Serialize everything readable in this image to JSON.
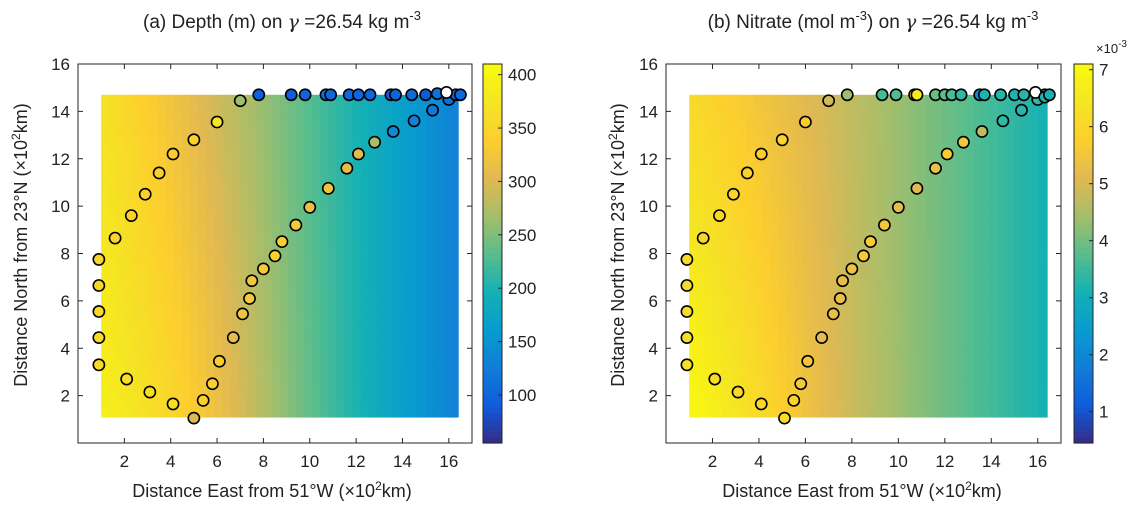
{
  "panels": [
    {
      "title": {
        "prefix": "(a) Depth (m) on ",
        "gamma": "γ",
        "eq": " =26.54 kg m",
        "sup": "-3"
      },
      "ylabel": {
        "pre": "Distance North from 23°N (",
        "times": "×",
        "ten": "10",
        "sup": "2",
        "post": "km)"
      },
      "xlabel": {
        "pre": "Distance East from 51°W (",
        "times": "×",
        "ten": "10",
        "sup": "2",
        "post": "km)"
      },
      "colorbar": {
        "ticks": [
          "100",
          "150",
          "200",
          "250",
          "300",
          "350",
          "400"
        ],
        "exponent": ""
      }
    },
    {
      "title": {
        "prefix": "(b) Nitrate (mol m",
        "sup1": "-3",
        "mid": ") on ",
        "gamma": "γ",
        "eq": " =26.54 kg m",
        "sup": "-3"
      },
      "ylabel": {
        "pre": "Distance North from 23°N (",
        "times": "×",
        "ten": "10",
        "sup": "2",
        "post": "km)"
      },
      "xlabel": {
        "pre": "Distance East from 51°W (",
        "times": "×",
        "ten": "10",
        "sup": "2",
        "post": "km)"
      },
      "colorbar": {
        "ticks": [
          "1",
          "2",
          "3",
          "4",
          "5",
          "6",
          "7"
        ],
        "exponent": {
          "times": "×",
          "ten": "10",
          "sup": "-3"
        }
      }
    }
  ],
  "chart_data": [
    {
      "type": "heatmap",
      "title": "(a) Depth (m) on γ =26.54 kg m-3",
      "xlabel": "Distance East from 51°W (×10²km)",
      "ylabel": "Distance North from 23°N (×10²km)",
      "xlim": [
        0,
        17
      ],
      "ylim": [
        0,
        16
      ],
      "xticks": [
        2,
        4,
        6,
        8,
        10,
        12,
        14,
        16
      ],
      "yticks": [
        2,
        4,
        6,
        8,
        10,
        12,
        14,
        16
      ],
      "field_extent": {
        "x": [
          1,
          16.4
        ],
        "y": [
          1.1,
          14.7
        ]
      },
      "field_model": {
        "west_value": 370,
        "east_value": 130,
        "south_boost_peak": 30,
        "southwest_peak_x": 4
      },
      "colorbar": {
        "min": 55,
        "max": 410,
        "ticks": [
          100,
          150,
          200,
          250,
          300,
          350,
          400
        ],
        "colormap": "parula"
      },
      "grid": false,
      "points": [
        {
          "x": 0.9,
          "y": 7.75,
          "v": 350
        },
        {
          "x": 0.9,
          "y": 6.65,
          "v": 352
        },
        {
          "x": 0.9,
          "y": 5.55,
          "v": 355
        },
        {
          "x": 0.9,
          "y": 4.45,
          "v": 358
        },
        {
          "x": 0.9,
          "y": 3.3,
          "v": 360
        },
        {
          "x": 2.1,
          "y": 2.7,
          "v": 362
        },
        {
          "x": 3.1,
          "y": 2.15,
          "v": 365
        },
        {
          "x": 4.1,
          "y": 1.65,
          "v": 368
        },
        {
          "x": 5.0,
          "y": 1.05,
          "v": 300
        },
        {
          "x": 5.4,
          "y": 1.8,
          "v": 345
        },
        {
          "x": 5.8,
          "y": 2.5,
          "v": 340
        },
        {
          "x": 6.1,
          "y": 3.45,
          "v": 335
        },
        {
          "x": 6.7,
          "y": 4.45,
          "v": 310
        },
        {
          "x": 7.1,
          "y": 5.45,
          "v": 320
        },
        {
          "x": 7.4,
          "y": 6.1,
          "v": 330
        },
        {
          "x": 7.5,
          "y": 6.85,
          "v": 325
        },
        {
          "x": 8.0,
          "y": 7.35,
          "v": 330
        },
        {
          "x": 8.5,
          "y": 7.9,
          "v": 345
        },
        {
          "x": 8.8,
          "y": 8.5,
          "v": 335
        },
        {
          "x": 9.4,
          "y": 9.2,
          "v": 330
        },
        {
          "x": 10.0,
          "y": 9.95,
          "v": 315
        },
        {
          "x": 10.8,
          "y": 10.75,
          "v": 320
        },
        {
          "x": 11.6,
          "y": 11.6,
          "v": 310
        },
        {
          "x": 12.1,
          "y": 12.2,
          "v": 305
        },
        {
          "x": 12.8,
          "y": 12.7,
          "v": 270
        },
        {
          "x": 13.6,
          "y": 13.15,
          "v": 140
        },
        {
          "x": 14.5,
          "y": 13.6,
          "v": 130
        },
        {
          "x": 15.3,
          "y": 14.05,
          "v": 120
        },
        {
          "x": 16.0,
          "y": 14.5,
          "v": 110
        },
        {
          "x": 16.3,
          "y": 14.7,
          "v": 100
        },
        {
          "x": 1.6,
          "y": 8.65,
          "v": 348
        },
        {
          "x": 2.3,
          "y": 9.6,
          "v": 345
        },
        {
          "x": 2.9,
          "y": 10.5,
          "v": 342
        },
        {
          "x": 3.5,
          "y": 11.4,
          "v": 340
        },
        {
          "x": 4.1,
          "y": 12.2,
          "v": 338
        },
        {
          "x": 5.0,
          "y": 12.8,
          "v": 345
        },
        {
          "x": 6.0,
          "y": 13.55,
          "v": 380
        },
        {
          "x": 7.0,
          "y": 14.45,
          "v": 265
        },
        {
          "x": 7.8,
          "y": 14.7,
          "v": 95
        },
        {
          "x": 9.2,
          "y": 14.7,
          "v": 92
        },
        {
          "x": 9.8,
          "y": 14.7,
          "v": 100
        },
        {
          "x": 10.7,
          "y": 14.7,
          "v": 110
        },
        {
          "x": 10.9,
          "y": 14.7,
          "v": 105
        },
        {
          "x": 11.7,
          "y": 14.7,
          "v": 105
        },
        {
          "x": 12.1,
          "y": 14.7,
          "v": 100
        },
        {
          "x": 12.6,
          "y": 14.7,
          "v": 100
        },
        {
          "x": 13.5,
          "y": 14.7,
          "v": 90
        },
        {
          "x": 13.7,
          "y": 14.7,
          "v": 100
        },
        {
          "x": 14.4,
          "y": 14.7,
          "v": 105
        },
        {
          "x": 15.0,
          "y": 14.7,
          "v": 90
        },
        {
          "x": 15.5,
          "y": 14.75,
          "v": 110
        },
        {
          "x": 15.9,
          "y": 14.8,
          "v": null
        },
        {
          "x": 16.5,
          "y": 14.7,
          "v": 105
        }
      ]
    },
    {
      "type": "heatmap",
      "title": "(b) Nitrate (mol m-3) on γ =26.54 kg m-3",
      "xlabel": "Distance East from 51°W (×10²km)",
      "ylabel": "Distance North from 23°N (×10²km)",
      "xlim": [
        0,
        17
      ],
      "ylim": [
        0,
        16
      ],
      "xticks": [
        2,
        4,
        6,
        8,
        10,
        12,
        14,
        16
      ],
      "yticks": [
        2,
        4,
        6,
        8,
        10,
        12,
        14,
        16
      ],
      "field_extent": {
        "x": [
          1,
          16.4
        ],
        "y": [
          1.1,
          14.7
        ]
      },
      "field_model": {
        "west_value": 6.1,
        "east_value": 3.1,
        "south_boost_peak": 0.9,
        "southwest_peak_x": 1
      },
      "colorbar": {
        "min": 0.45,
        "max": 7.1,
        "ticks": [
          1,
          2,
          3,
          4,
          5,
          6,
          7
        ],
        "colormap": "parula",
        "exponent": "×10^-3"
      },
      "grid": false,
      "points": [
        {
          "x": 0.9,
          "y": 7.75,
          "v": 6.1
        },
        {
          "x": 0.9,
          "y": 6.65,
          "v": 6.2
        },
        {
          "x": 0.9,
          "y": 5.55,
          "v": 6.2
        },
        {
          "x": 0.9,
          "y": 4.45,
          "v": 6.3
        },
        {
          "x": 0.9,
          "y": 3.3,
          "v": 6.3
        },
        {
          "x": 2.1,
          "y": 2.7,
          "v": 6.2
        },
        {
          "x": 3.1,
          "y": 2.15,
          "v": 6.1
        },
        {
          "x": 4.1,
          "y": 1.65,
          "v": 6.0
        },
        {
          "x": 5.1,
          "y": 1.05,
          "v": 6.2
        },
        {
          "x": 5.5,
          "y": 1.8,
          "v": 5.9
        },
        {
          "x": 5.8,
          "y": 2.5,
          "v": 5.6
        },
        {
          "x": 6.1,
          "y": 3.45,
          "v": 5.5
        },
        {
          "x": 6.7,
          "y": 4.45,
          "v": 5.2
        },
        {
          "x": 7.2,
          "y": 5.45,
          "v": 5.3
        },
        {
          "x": 7.5,
          "y": 6.1,
          "v": 5.3
        },
        {
          "x": 7.6,
          "y": 6.85,
          "v": 5.2
        },
        {
          "x": 8.0,
          "y": 7.35,
          "v": 5.4
        },
        {
          "x": 8.5,
          "y": 7.9,
          "v": 5.6
        },
        {
          "x": 8.8,
          "y": 8.5,
          "v": 5.7
        },
        {
          "x": 9.4,
          "y": 9.2,
          "v": 5.5
        },
        {
          "x": 10.0,
          "y": 9.95,
          "v": 5.2
        },
        {
          "x": 10.8,
          "y": 10.75,
          "v": 5.1
        },
        {
          "x": 11.6,
          "y": 11.6,
          "v": 5.3
        },
        {
          "x": 12.1,
          "y": 12.2,
          "v": 5.7
        },
        {
          "x": 12.8,
          "y": 12.7,
          "v": 5.5
        },
        {
          "x": 13.6,
          "y": 13.15,
          "v": 4.7
        },
        {
          "x": 14.5,
          "y": 13.6,
          "v": 3.4
        },
        {
          "x": 15.3,
          "y": 14.05,
          "v": 3.3
        },
        {
          "x": 16.0,
          "y": 14.5,
          "v": 3.4
        },
        {
          "x": 16.3,
          "y": 14.7,
          "v": 3.2
        },
        {
          "x": 1.6,
          "y": 8.65,
          "v": 6.0
        },
        {
          "x": 2.3,
          "y": 9.6,
          "v": 5.9
        },
        {
          "x": 2.9,
          "y": 10.5,
          "v": 6.0
        },
        {
          "x": 3.5,
          "y": 11.4,
          "v": 5.9
        },
        {
          "x": 4.1,
          "y": 12.2,
          "v": 5.8
        },
        {
          "x": 5.0,
          "y": 12.8,
          "v": 5.9
        },
        {
          "x": 6.0,
          "y": 13.55,
          "v": 5.7
        },
        {
          "x": 7.0,
          "y": 14.45,
          "v": 4.9
        },
        {
          "x": 7.8,
          "y": 14.7,
          "v": 4.4
        },
        {
          "x": 9.3,
          "y": 14.7,
          "v": 3.6
        },
        {
          "x": 9.9,
          "y": 14.7,
          "v": 3.7
        },
        {
          "x": 10.7,
          "y": 14.7,
          "v": 6.6
        },
        {
          "x": 10.8,
          "y": 14.7,
          "v": 6.6
        },
        {
          "x": 11.6,
          "y": 14.7,
          "v": 3.9
        },
        {
          "x": 12.0,
          "y": 14.7,
          "v": 3.8
        },
        {
          "x": 12.3,
          "y": 14.7,
          "v": 3.6
        },
        {
          "x": 12.7,
          "y": 14.7,
          "v": 3.4
        },
        {
          "x": 13.5,
          "y": 14.7,
          "v": 2.1
        },
        {
          "x": 13.7,
          "y": 14.7,
          "v": 3.2
        },
        {
          "x": 14.4,
          "y": 14.7,
          "v": 3.3
        },
        {
          "x": 15.0,
          "y": 14.7,
          "v": 3.2
        },
        {
          "x": 15.4,
          "y": 14.7,
          "v": 3.3
        },
        {
          "x": 15.9,
          "y": 14.8,
          "v": null
        },
        {
          "x": 16.3,
          "y": 14.6,
          "v": 3.2
        },
        {
          "x": 16.5,
          "y": 14.7,
          "v": 3.1
        }
      ]
    }
  ]
}
